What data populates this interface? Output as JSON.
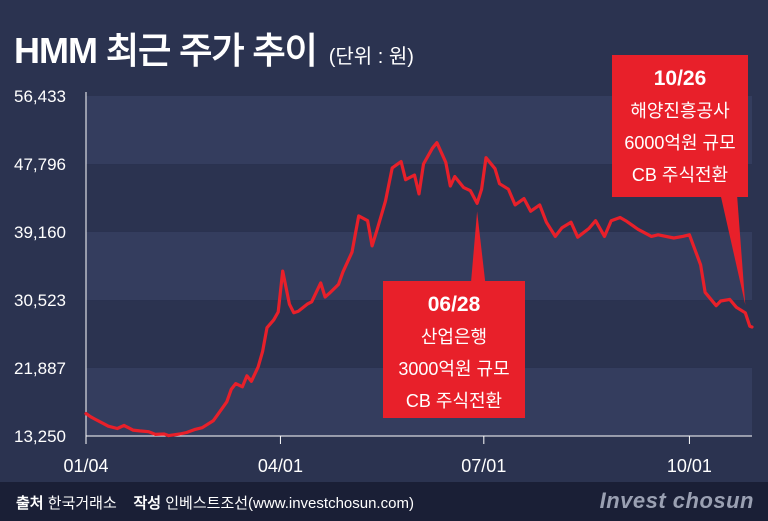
{
  "title": "HMM 최근 주가 추이",
  "unit": "(단위 : 원)",
  "footer": {
    "source_label": "출처",
    "source": "한국거래소",
    "author_label": "작성",
    "author": "인베스트조선(www.investchosun.com)",
    "brand": "Invest chosun"
  },
  "colors": {
    "background": "#2b3350",
    "band": "#343d5e",
    "line": "#e8202a",
    "annotation_box": "#e8202a",
    "footer": "#1a1f36"
  },
  "chart_data": {
    "type": "line",
    "series": [
      {
        "name": "",
        "color": "#e8202a"
      }
    ],
    "ylim": [
      13250,
      56433
    ],
    "yticks": [
      "56,433",
      "47,796",
      "39,160",
      "30,523",
      "21,887",
      "13,250"
    ],
    "ytick_values": [
      56433,
      47796,
      39160,
      30523,
      21887,
      13250
    ],
    "xticks": [
      "01/04",
      "04/01",
      "07/01",
      "10/01"
    ],
    "xtick_dates": [
      "2021-01-04",
      "2021-04-01",
      "2021-07-01",
      "2021-10-01"
    ],
    "xlim": [
      "2021-01-04",
      "2021-10-29"
    ],
    "grid": "alternating horizontal bands",
    "points": [
      [
        "2021-01-04",
        16100
      ],
      [
        "2021-01-06",
        15700
      ],
      [
        "2021-01-08",
        15400
      ],
      [
        "2021-01-12",
        14800
      ],
      [
        "2021-01-14",
        14500
      ],
      [
        "2021-01-18",
        14200
      ],
      [
        "2021-01-21",
        14600
      ],
      [
        "2021-01-25",
        14000
      ],
      [
        "2021-01-28",
        13900
      ],
      [
        "2021-02-01",
        13800
      ],
      [
        "2021-02-04",
        13450
      ],
      [
        "2021-02-08",
        13500
      ],
      [
        "2021-02-10",
        13300
      ],
      [
        "2021-02-15",
        13500
      ],
      [
        "2021-02-18",
        13700
      ],
      [
        "2021-02-22",
        14100
      ],
      [
        "2021-02-25",
        14300
      ],
      [
        "2021-03-02",
        15200
      ],
      [
        "2021-03-04",
        16000
      ],
      [
        "2021-03-08",
        17600
      ],
      [
        "2021-03-10",
        19200
      ],
      [
        "2021-03-12",
        19900
      ],
      [
        "2021-03-15",
        19500
      ],
      [
        "2021-03-17",
        20900
      ],
      [
        "2021-03-19",
        20200
      ],
      [
        "2021-03-22",
        22000
      ],
      [
        "2021-03-24",
        24000
      ],
      [
        "2021-03-26",
        27000
      ],
      [
        "2021-03-29",
        28000
      ],
      [
        "2021-03-31",
        29000
      ],
      [
        "2021-04-02",
        34200
      ],
      [
        "2021-04-05",
        30000
      ],
      [
        "2021-04-07",
        28900
      ],
      [
        "2021-04-09",
        29100
      ],
      [
        "2021-04-13",
        30000
      ],
      [
        "2021-04-15",
        30300
      ],
      [
        "2021-04-19",
        32700
      ],
      [
        "2021-04-21",
        30900
      ],
      [
        "2021-04-23",
        31400
      ],
      [
        "2021-04-27",
        32500
      ],
      [
        "2021-04-29",
        34100
      ],
      [
        "2021-05-03",
        36600
      ],
      [
        "2021-05-06",
        41200
      ],
      [
        "2021-05-10",
        40600
      ],
      [
        "2021-05-12",
        37400
      ],
      [
        "2021-05-14",
        39200
      ],
      [
        "2021-05-18",
        43100
      ],
      [
        "2021-05-21",
        47300
      ],
      [
        "2021-05-25",
        48100
      ],
      [
        "2021-05-27",
        45800
      ],
      [
        "2021-05-31",
        46400
      ],
      [
        "2021-06-02",
        44000
      ],
      [
        "2021-06-04",
        47800
      ],
      [
        "2021-06-08",
        49800
      ],
      [
        "2021-06-10",
        50500
      ],
      [
        "2021-06-14",
        48000
      ],
      [
        "2021-06-16",
        45000
      ],
      [
        "2021-06-18",
        46200
      ],
      [
        "2021-06-22",
        44800
      ],
      [
        "2021-06-25",
        44400
      ],
      [
        "2021-06-28",
        42800
      ],
      [
        "2021-06-30",
        44600
      ],
      [
        "2021-07-02",
        48600
      ],
      [
        "2021-07-06",
        47200
      ],
      [
        "2021-07-08",
        45300
      ],
      [
        "2021-07-12",
        44600
      ],
      [
        "2021-07-15",
        42600
      ],
      [
        "2021-07-19",
        43400
      ],
      [
        "2021-07-22",
        41800
      ],
      [
        "2021-07-26",
        42600
      ],
      [
        "2021-07-29",
        40400
      ],
      [
        "2021-08-02",
        38600
      ],
      [
        "2021-08-05",
        39700
      ],
      [
        "2021-08-09",
        40400
      ],
      [
        "2021-08-12",
        38500
      ],
      [
        "2021-08-17",
        39600
      ],
      [
        "2021-08-20",
        40600
      ],
      [
        "2021-08-24",
        38600
      ],
      [
        "2021-08-27",
        40600
      ],
      [
        "2021-08-31",
        41000
      ],
      [
        "2021-09-03",
        40500
      ],
      [
        "2021-09-08",
        39500
      ],
      [
        "2021-09-10",
        39200
      ],
      [
        "2021-09-14",
        38600
      ],
      [
        "2021-09-17",
        38800
      ],
      [
        "2021-09-24",
        38400
      ],
      [
        "2021-09-28",
        38600
      ],
      [
        "2021-10-01",
        38800
      ],
      [
        "2021-10-06",
        35000
      ],
      [
        "2021-10-08",
        31500
      ],
      [
        "2021-10-13",
        29800
      ],
      [
        "2021-10-15",
        30400
      ],
      [
        "2021-10-19",
        30600
      ],
      [
        "2021-10-22",
        29600
      ],
      [
        "2021-10-26",
        28900
      ],
      [
        "2021-10-28",
        27200
      ],
      [
        "2021-10-29",
        27100
      ]
    ],
    "annotations": [
      {
        "date": "2021-06-28",
        "value": 42800,
        "head": "06/28",
        "lines": [
          "산업은행",
          "3000억원 규모",
          "CB 주식전환"
        ]
      },
      {
        "date": "2021-10-26",
        "value": 28900,
        "head": "10/26",
        "lines": [
          "해양진흥공사",
          "6000억원 규모",
          "CB 주식전환"
        ]
      }
    ]
  }
}
